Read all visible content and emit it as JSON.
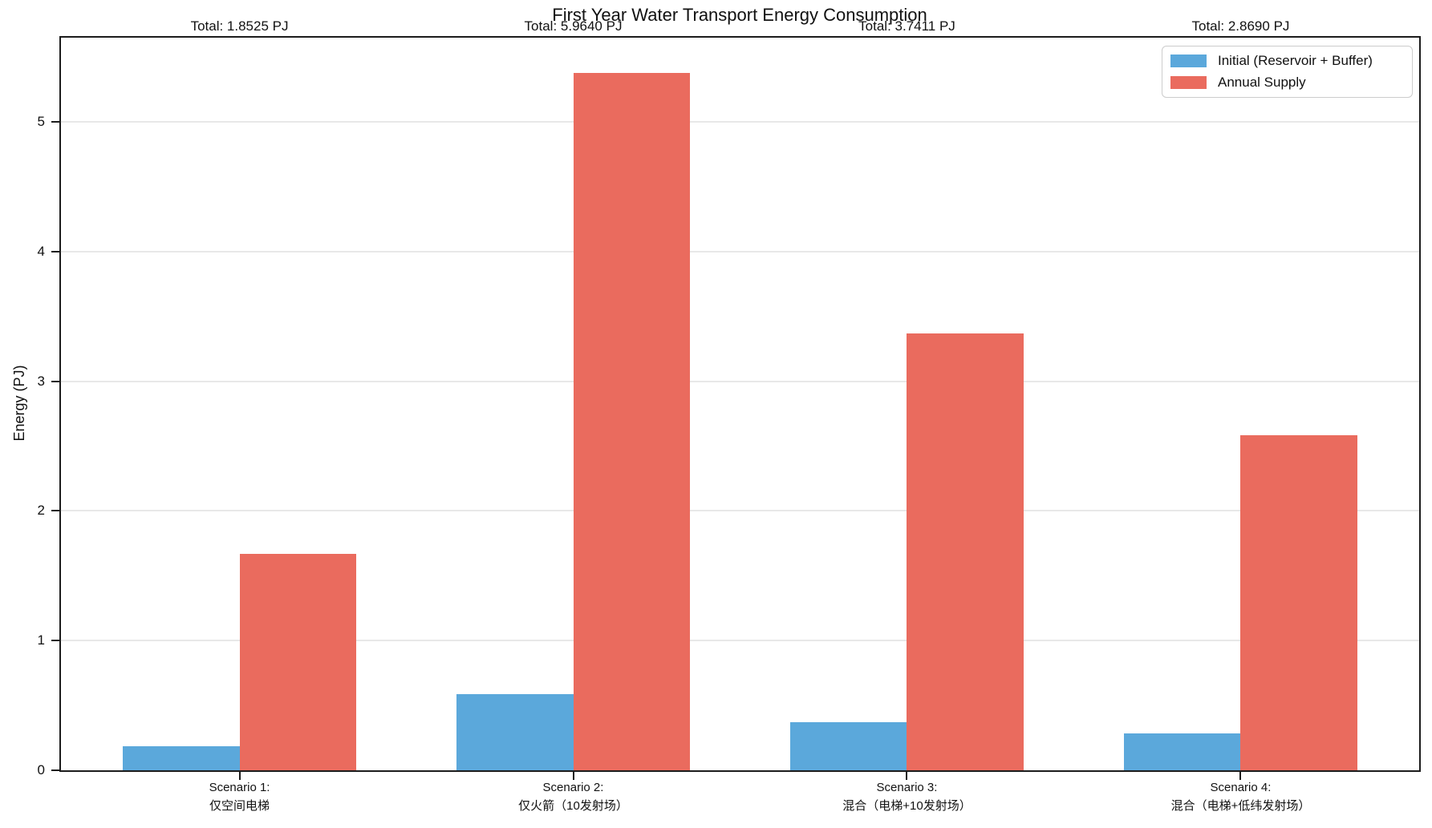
{
  "chart_data": {
    "type": "bar",
    "title": "First Year Water Transport Energy Consumption",
    "xlabel": "",
    "ylabel": "Energy (PJ)",
    "ylim": [
      0,
      5.648
    ],
    "yticks": [
      0,
      1,
      2,
      3,
      4,
      5
    ],
    "grid": true,
    "legend_position": "upper right",
    "bar_group_width": 0.35,
    "categories": [
      {
        "line1": "Scenario 1:",
        "line2": "仅空间电梯"
      },
      {
        "line1": "Scenario 2:",
        "line2": "仅火箭（10发射场）"
      },
      {
        "line1": "Scenario 3:",
        "line2": "混合（电梯+10发射场）"
      },
      {
        "line1": "Scenario 4:",
        "line2": "混合（电梯+低纬发射场）"
      }
    ],
    "series": [
      {
        "name": "Initial (Reservoir + Buffer)",
        "color": "#5BA8DB",
        "values": [
          0.185,
          0.585,
          0.373,
          0.284
        ]
      },
      {
        "name": "Annual Supply",
        "color": "#EA6B5E",
        "values": [
          1.6675,
          5.379,
          3.368,
          2.585
        ]
      }
    ],
    "totals": [
      1.8525,
      5.964,
      3.7411,
      2.869
    ],
    "total_labels": [
      "Total: 1.8525 PJ",
      "Total: 5.9640 PJ",
      "Total: 3.7411 PJ",
      "Total: 2.8690 PJ"
    ]
  },
  "legend": {
    "items": [
      {
        "label": "Initial (Reservoir + Buffer)",
        "color": "#5BA8DB"
      },
      {
        "label": "Annual Supply",
        "color": "#EA6B5E"
      }
    ]
  },
  "colors": {
    "initial_bar": "#5BA8DB",
    "annual_bar": "#EA6B5E",
    "grid": "#e8e8e8",
    "spine": "#1c1c1c"
  }
}
